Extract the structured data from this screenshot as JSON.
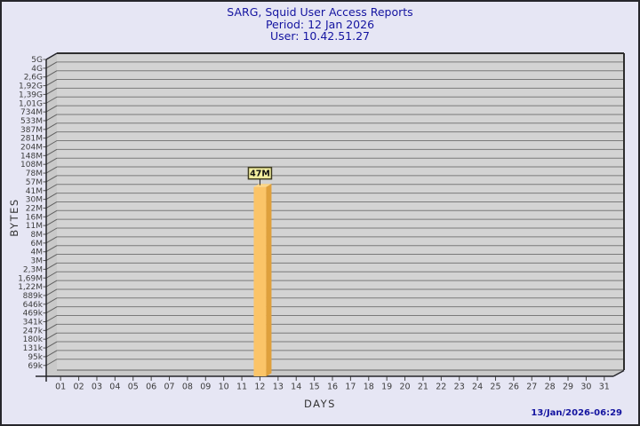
{
  "page": {
    "background": "#e6e6f4",
    "border_color": "#26262b",
    "title_color": "#1414a0"
  },
  "header": {
    "title": "SARG, Squid User Access Reports",
    "period": "Period: 12 Jan 2026",
    "user": "User: 10.42.51.27"
  },
  "footer": {
    "timestamp": "13/Jan/2026-06:29"
  },
  "chart_data": {
    "type": "bar",
    "title": "SARG, Squid User Access Reports",
    "subtitle": "Period: 12 Jan 2026",
    "user_line": "User: 10.42.51.27",
    "xlabel": "DAYS",
    "ylabel": "BYTES",
    "y_scale": "logarithmic",
    "grid": true,
    "x_categories": [
      "01",
      "02",
      "03",
      "04",
      "05",
      "06",
      "07",
      "08",
      "09",
      "10",
      "11",
      "12",
      "13",
      "14",
      "15",
      "16",
      "17",
      "18",
      "19",
      "20",
      "21",
      "22",
      "23",
      "24",
      "25",
      "26",
      "27",
      "28",
      "29",
      "30",
      "31"
    ],
    "y_tick_labels": [
      "5G",
      "4G",
      "2,6G",
      "1,92G",
      "1,39G",
      "1,01G",
      "734M",
      "533M",
      "387M",
      "281M",
      "204M",
      "148M",
      "108M",
      "78M",
      "57M",
      "41M",
      "30M",
      "22M",
      "16M",
      "11M",
      "8M",
      "6M",
      "4M",
      "3M",
      "2,3M",
      "1,69M",
      "1,22M",
      "889k",
      "646k",
      "469k",
      "341k",
      "247k",
      "180k",
      "131k",
      "95k",
      "69k"
    ],
    "series": [
      {
        "name": "bytes",
        "points": [
          {
            "x": "12",
            "value": 47000000,
            "label": "47M"
          }
        ]
      }
    ],
    "colors": {
      "plot_bg": "#d3d3d3",
      "grid": "#7a7a7a",
      "wall": "#c9c9c9",
      "edge_dark": "#26262b",
      "edge_mid": "#606060",
      "bar_front": "#fbc468",
      "bar_side": "#dfa03c",
      "bar_top": "#fdd78a",
      "annotation_bg": "#f3efa0",
      "annotation_border": "#3f3c20",
      "axis_text": "#3c3c3c"
    }
  }
}
